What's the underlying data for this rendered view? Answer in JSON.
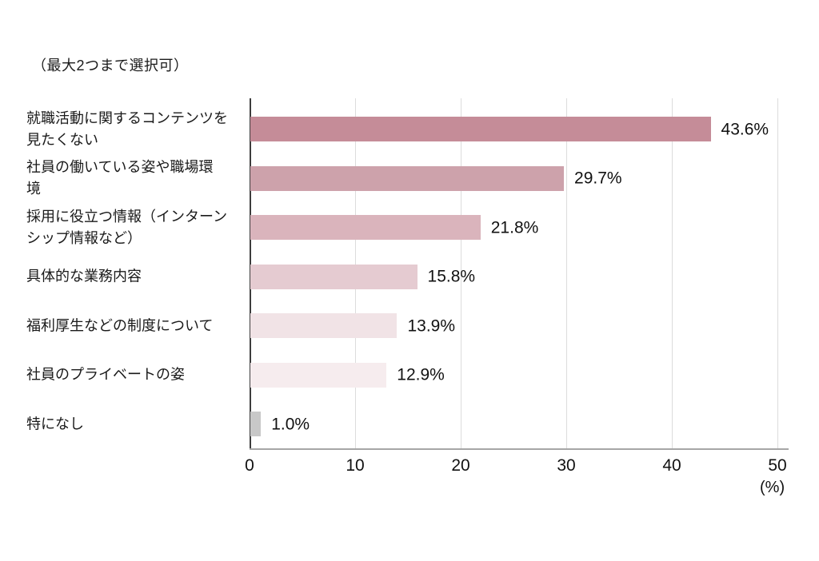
{
  "note": "（最大2つまで選択可）",
  "chart_data": {
    "type": "bar",
    "orientation": "horizontal",
    "title": "（最大2つまで選択可）",
    "categories": [
      "就職活動に関するコンテンツを見たくない",
      "社員の働いている姿や職場環境",
      "採用に役立つ情報（インターンシップ情報など）",
      "具体的な業務内容",
      "福利厚生などの制度について",
      "社員のプライベートの姿",
      "特になし"
    ],
    "category_lines": [
      [
        "就職活動に関するコンテンツを",
        "見たくない"
      ],
      [
        "社員の働いている姿や職場環",
        "境"
      ],
      [
        "採用に役立つ情報（インターン",
        "シップ情報など）"
      ],
      [
        "具体的な業務内容"
      ],
      [
        "福利厚生などの制度について"
      ],
      [
        "社員のプライベートの姿"
      ],
      [
        "特になし"
      ]
    ],
    "values": [
      43.6,
      29.7,
      21.8,
      15.8,
      13.9,
      12.9,
      1.0
    ],
    "value_labels": [
      "43.6%",
      "29.7%",
      "21.8%",
      "15.8%",
      "13.9%",
      "12.9%",
      "1.0%"
    ],
    "bar_colors": [
      "#c58c98",
      "#cda2ab",
      "#dab4bc",
      "#e5cbd1",
      "#f1e3e6",
      "#f6ecee",
      "#c8c8c8"
    ],
    "xlabel": "(%)",
    "xlim": [
      0,
      50
    ],
    "xticks": [
      "0",
      "10",
      "20",
      "30",
      "40",
      "50"
    ],
    "grid": true,
    "legend": false,
    "colors": {
      "gridline": "#dcdcdc",
      "category_axis": "#3d3d3d",
      "value_axis": "#a6a6a6",
      "text": "#1a1a1a",
      "gray_bar": "#c8c8c8"
    }
  }
}
